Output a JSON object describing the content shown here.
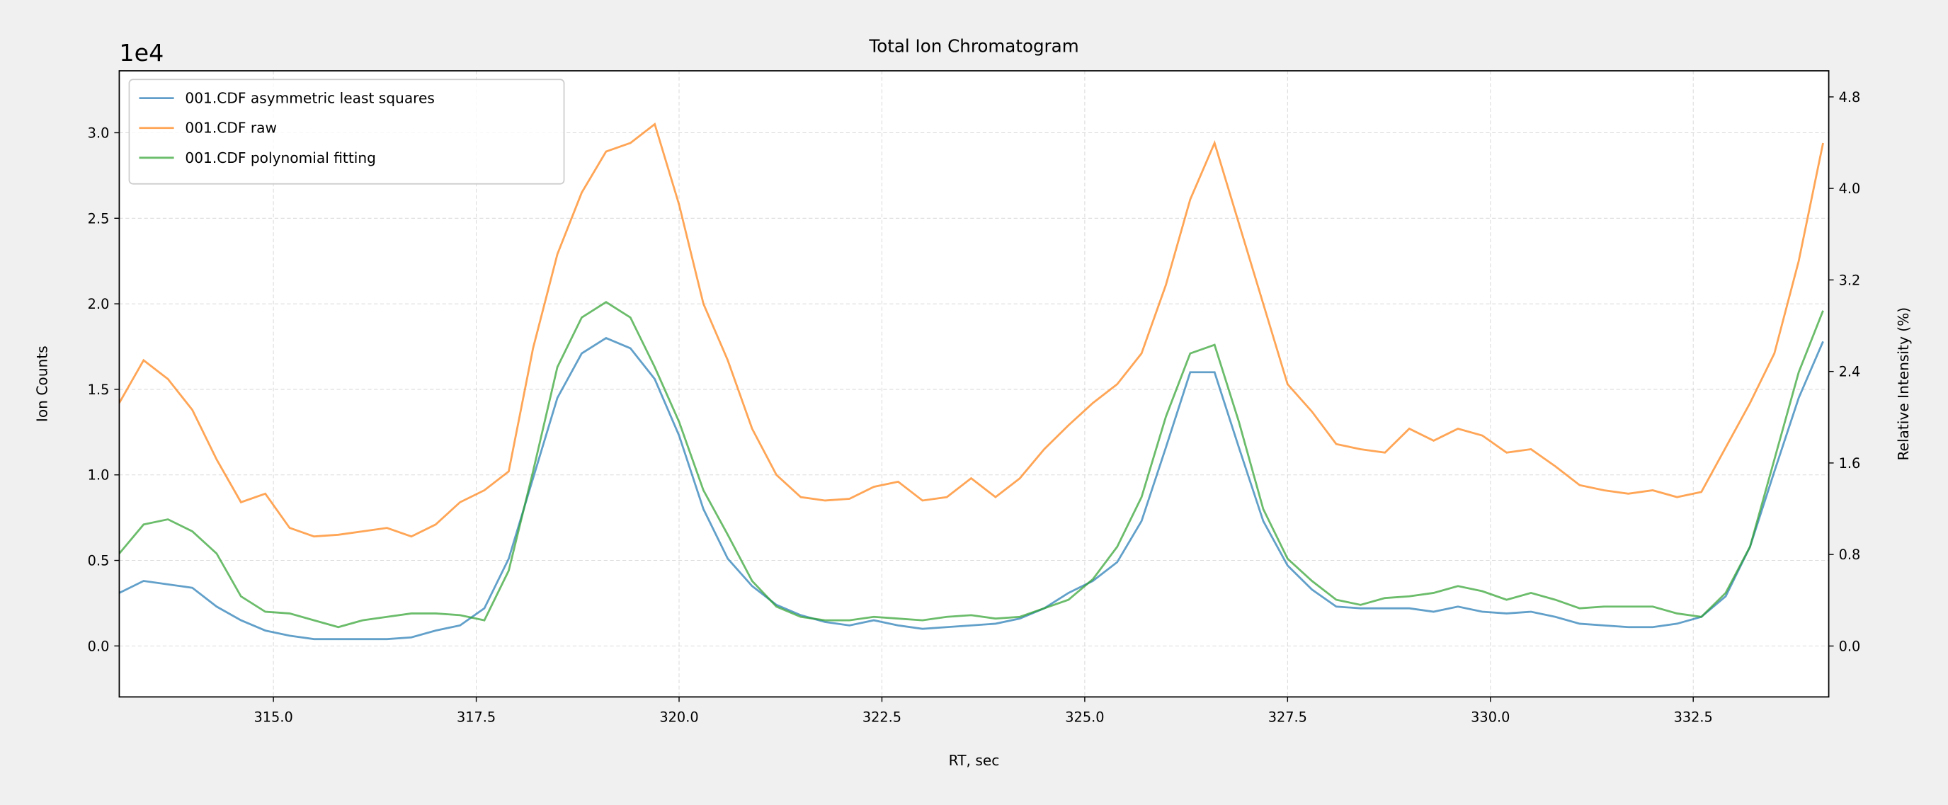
{
  "chart_data": {
    "type": "line",
    "title": "Total Ion Chromatogram",
    "x_label": "RT, sec",
    "y_label": "Ion Counts",
    "y2_label": "Relative Intensity (%)",
    "y_offset_text": "1e4",
    "xlim": [
      313.1,
      334.17
    ],
    "ylim": [
      -2980,
      33620
    ],
    "y2lim": [
      -0.445,
      5.028
    ],
    "xticks": [
      {
        "value": 315,
        "label": "315.0"
      },
      {
        "value": 317.5,
        "label": "317.5"
      },
      {
        "value": 320,
        "label": "320.0"
      },
      {
        "value": 322.5,
        "label": "322.5"
      },
      {
        "value": 325,
        "label": "325.0"
      },
      {
        "value": 327.5,
        "label": "327.5"
      },
      {
        "value": 330,
        "label": "330.0"
      },
      {
        "value": 332.5,
        "label": "332.5"
      }
    ],
    "yticks": [
      {
        "value": 0,
        "label": "0.0"
      },
      {
        "value": 5000,
        "label": "0.5"
      },
      {
        "value": 10000,
        "label": "1.0"
      },
      {
        "value": 15000,
        "label": "1.5"
      },
      {
        "value": 20000,
        "label": "2.0"
      },
      {
        "value": 25000,
        "label": "2.5"
      },
      {
        "value": 30000,
        "label": "3.0"
      }
    ],
    "y2ticks": [
      {
        "value": 0,
        "label": "0.0"
      },
      0.8,
      1.6,
      2.4,
      3.2,
      {
        "value": 4,
        "label": "4.0"
      },
      4.8
    ],
    "grid": true,
    "legend": "upper left",
    "alpha": 0.7,
    "x": [
      313.1,
      313.4,
      313.7,
      314,
      314.3,
      314.6,
      314.9,
      315.2,
      315.5,
      315.8,
      316.1,
      316.4,
      316.7,
      317,
      317.3,
      317.6,
      317.9,
      318.2,
      318.5,
      318.8,
      319.1,
      319.4,
      319.7,
      320,
      320.3,
      320.6,
      320.9,
      321.2,
      321.5,
      321.8,
      322.1,
      322.4,
      322.7,
      323,
      323.3,
      323.6,
      323.9,
      324.2,
      324.5,
      324.8,
      325.1,
      325.4,
      325.7,
      326,
      326.3,
      326.6,
      326.9,
      327.2,
      327.5,
      327.8,
      328.1,
      328.4,
      328.7,
      329,
      329.3,
      329.6,
      329.9,
      330.2,
      330.5,
      330.8,
      331.1,
      331.4,
      331.7,
      332,
      332.3,
      332.6,
      332.9,
      333.2,
      333.5,
      333.8,
      334.1
    ],
    "series": [
      {
        "name": "001.CDF asymmetric least squares",
        "color": "#1f77b4",
        "values": [
          3100,
          3800,
          3600,
          3400,
          2300,
          1500,
          900,
          600,
          400,
          400,
          400,
          400,
          500,
          900,
          1200,
          2200,
          5100,
          9800,
          14500,
          17100,
          18000,
          17400,
          15600,
          12300,
          8000,
          5100,
          3500,
          2400,
          1800,
          1400,
          1200,
          1500,
          1200,
          1000,
          1100,
          1200,
          1300,
          1600,
          2200,
          3100,
          3800,
          4900,
          7300,
          11600,
          16000,
          16000,
          11600,
          7300,
          4700,
          3300,
          2300,
          2200,
          2200,
          2200,
          2000,
          2300,
          2000,
          1900,
          2000,
          1700,
          1300,
          1200,
          1100,
          1100,
          1300,
          1700,
          2900,
          5800,
          10200,
          14500,
          17800
        ]
      },
      {
        "name": "001.CDF raw",
        "color": "#ff7f0e",
        "values": [
          14200,
          16700,
          15600,
          13800,
          10900,
          8400,
          8900,
          6900,
          6400,
          6500,
          6700,
          6900,
          6400,
          7100,
          8400,
          9100,
          10200,
          17400,
          22900,
          26500,
          28900,
          29400,
          30500,
          25800,
          20000,
          16700,
          12700,
          10000,
          8700,
          8500,
          8600,
          9300,
          9600,
          8500,
          8700,
          9800,
          8700,
          9800,
          11500,
          12900,
          14200,
          15300,
          17100,
          21100,
          26100,
          29400,
          24700,
          20000,
          15300,
          13700,
          11800,
          11500,
          11300,
          12700,
          12000,
          12700,
          12300,
          11300,
          11500,
          10500,
          9400,
          9100,
          8900,
          9100,
          8700,
          9000,
          11600,
          14200,
          17100,
          22500,
          29400
        ]
      },
      {
        "name": "001.CDF polynomial fitting",
        "color": "#2ca02c",
        "values": [
          5400,
          7100,
          7400,
          6700,
          5400,
          2900,
          2000,
          1900,
          1500,
          1100,
          1500,
          1700,
          1900,
          1900,
          1800,
          1500,
          4400,
          10200,
          16300,
          19200,
          20100,
          19200,
          16300,
          13100,
          9100,
          6500,
          3800,
          2300,
          1700,
          1500,
          1500,
          1700,
          1600,
          1500,
          1700,
          1800,
          1600,
          1700,
          2200,
          2700,
          3900,
          5800,
          8700,
          13400,
          17100,
          17600,
          13100,
          8000,
          5100,
          3800,
          2700,
          2400,
          2800,
          2900,
          3100,
          3500,
          3200,
          2700,
          3100,
          2700,
          2200,
          2300,
          2300,
          2300,
          1900,
          1700,
          3100,
          5800,
          10900,
          16000,
          19600
        ]
      }
    ]
  }
}
